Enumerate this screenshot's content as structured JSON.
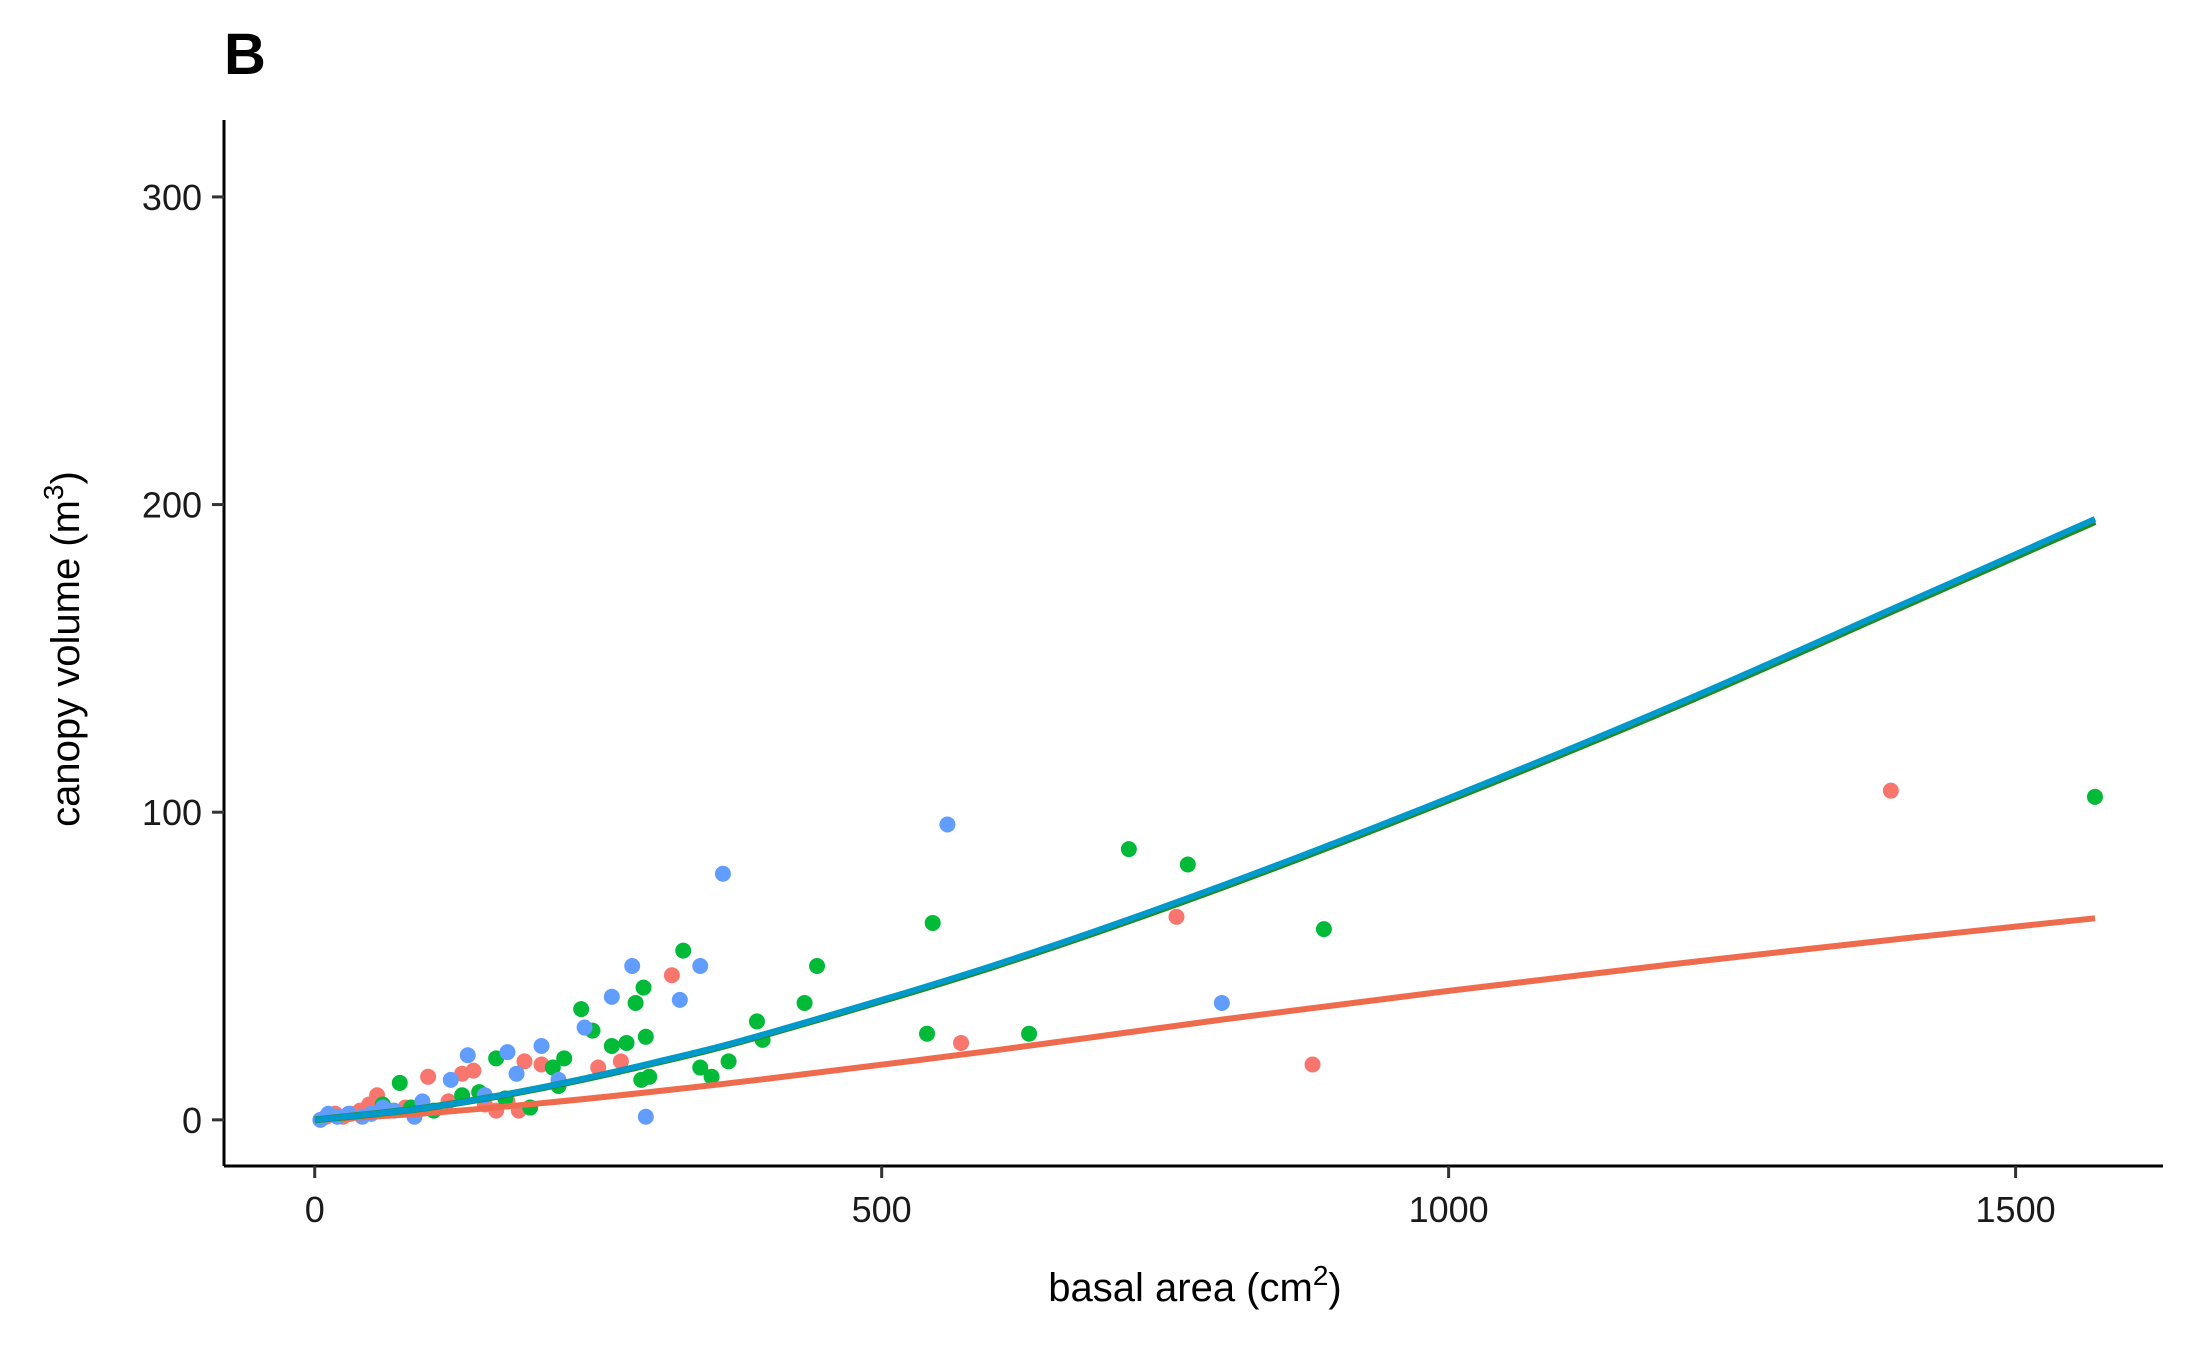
{
  "chart_data": {
    "type": "scatter",
    "panel_label": "B",
    "xlabel": "basal area (cm",
    "xlabel_sup": "2",
    "xlabel_end": ")",
    "ylabel": "canopy volume (m",
    "ylabel_sup": "3",
    "ylabel_end": ")",
    "xlim": [
      -80,
      1630
    ],
    "ylim": [
      -15,
      325
    ],
    "x_ticks": [
      0,
      500,
      1000,
      1500
    ],
    "y_ticks": [
      0,
      100,
      200,
      300
    ],
    "x_tick_labels": [
      "0",
      "500",
      "1000",
      "1500"
    ],
    "y_tick_labels": [
      "0",
      "100",
      "200",
      "300"
    ],
    "grid": false,
    "legend": "none",
    "series": [
      {
        "color": "#F8766D",
        "points": [
          [
            10,
            1
          ],
          [
            18,
            2
          ],
          [
            25,
            1
          ],
          [
            32,
            2
          ],
          [
            40,
            3
          ],
          [
            48,
            5
          ],
          [
            55,
            8
          ],
          [
            65,
            3
          ],
          [
            80,
            4
          ],
          [
            100,
            14
          ],
          [
            118,
            6
          ],
          [
            130,
            15
          ],
          [
            140,
            16
          ],
          [
            150,
            5
          ],
          [
            160,
            3
          ],
          [
            170,
            6
          ],
          [
            180,
            3
          ],
          [
            185,
            19
          ],
          [
            200,
            18
          ],
          [
            250,
            17
          ],
          [
            270,
            19
          ],
          [
            315,
            47
          ],
          [
            570,
            25
          ],
          [
            760,
            66
          ],
          [
            880,
            18
          ],
          [
            1390,
            107
          ]
        ],
        "fit_curve": [
          [
            0,
            0
          ],
          [
            100,
            2.2
          ],
          [
            200,
            5.4
          ],
          [
            300,
            9.2
          ],
          [
            400,
            13.4
          ],
          [
            600,
            22.6
          ],
          [
            800,
            32.6
          ],
          [
            1000,
            41.9
          ],
          [
            1200,
            50.7
          ],
          [
            1400,
            58.9
          ],
          [
            1570,
            65.5
          ]
        ],
        "line_color": "#EE6C4D"
      },
      {
        "color": "#00BA38",
        "points": [
          [
            60,
            5
          ],
          [
            75,
            12
          ],
          [
            85,
            4
          ],
          [
            105,
            3
          ],
          [
            130,
            8
          ],
          [
            145,
            9
          ],
          [
            160,
            20
          ],
          [
            168,
            7
          ],
          [
            190,
            4
          ],
          [
            210,
            17
          ],
          [
            215,
            11
          ],
          [
            220,
            20
          ],
          [
            235,
            36
          ],
          [
            245,
            29
          ],
          [
            262,
            24
          ],
          [
            275,
            25
          ],
          [
            283,
            38
          ],
          [
            288,
            13
          ],
          [
            290,
            43
          ],
          [
            292,
            27
          ],
          [
            295,
            14
          ],
          [
            325,
            55
          ],
          [
            340,
            17
          ],
          [
            350,
            14
          ],
          [
            365,
            19
          ],
          [
            390,
            32
          ],
          [
            395,
            26
          ],
          [
            432,
            38
          ],
          [
            443,
            50
          ],
          [
            540,
            28
          ],
          [
            545,
            64
          ],
          [
            630,
            28
          ],
          [
            718,
            88
          ],
          [
            770,
            83
          ],
          [
            890,
            62
          ],
          [
            1570,
            105
          ]
        ],
        "fit_curve": [
          [
            0,
            0
          ],
          [
            100,
            4.0
          ],
          [
            200,
            10.4
          ],
          [
            300,
            18.5
          ],
          [
            400,
            28.0
          ],
          [
            600,
            50.0
          ],
          [
            800,
            75.6
          ],
          [
            1000,
            104.0
          ],
          [
            1200,
            134.3
          ],
          [
            1400,
            166.8
          ],
          [
            1570,
            194.5
          ]
        ],
        "line_color": "#228B22"
      },
      {
        "color": "#619CFF",
        "points": [
          [
            5,
            0
          ],
          [
            12,
            2
          ],
          [
            20,
            1
          ],
          [
            30,
            2
          ],
          [
            42,
            1
          ],
          [
            50,
            2
          ],
          [
            60,
            4
          ],
          [
            70,
            3
          ],
          [
            88,
            1
          ],
          [
            95,
            6
          ],
          [
            120,
            13
          ],
          [
            135,
            21
          ],
          [
            150,
            8
          ],
          [
            170,
            22
          ],
          [
            178,
            15
          ],
          [
            200,
            24
          ],
          [
            215,
            13
          ],
          [
            238,
            30
          ],
          [
            262,
            40
          ],
          [
            280,
            50
          ],
          [
            292,
            1
          ],
          [
            322,
            39
          ],
          [
            340,
            50
          ],
          [
            360,
            80
          ],
          [
            558,
            96
          ],
          [
            800,
            38
          ]
        ],
        "fit_curve": [
          [
            0,
            0
          ],
          [
            100,
            4.0
          ],
          [
            200,
            10.5
          ],
          [
            300,
            18.7
          ],
          [
            400,
            28.2
          ],
          [
            600,
            50.4
          ],
          [
            800,
            76.1
          ],
          [
            1000,
            104.6
          ],
          [
            1200,
            135.0
          ],
          [
            1400,
            167.5
          ],
          [
            1570,
            195.3
          ]
        ],
        "line_color": "#0099CC"
      }
    ]
  }
}
